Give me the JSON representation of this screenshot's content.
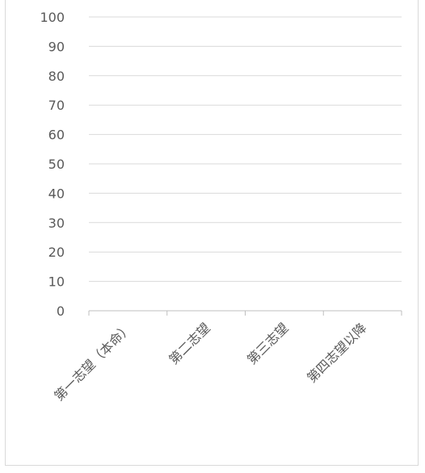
{
  "chart_data": {
    "type": "bar",
    "categories": [
      "第一志望（本命）",
      "第二志望",
      "第三志望",
      "第四志望以降"
    ],
    "series": [
      {
        "values": [
          0,
          0,
          0,
          0
        ]
      }
    ],
    "ylim": [
      0,
      100
    ],
    "yticks": [
      0,
      10,
      20,
      30,
      40,
      50,
      60,
      70,
      80,
      90,
      100
    ],
    "grid": true,
    "legend": "none",
    "colors": {
      "grid": "#d9d9d9",
      "axis": "#bfbfbf",
      "text": "#595959"
    }
  }
}
